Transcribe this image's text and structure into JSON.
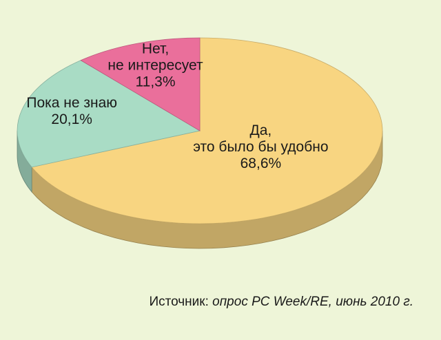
{
  "chart_data": {
    "type": "pie",
    "categories": [
      "Да,\nэто было бы удобно",
      "Пока не знаю",
      "Нет,\nне интересует"
    ],
    "values": [
      68.6,
      20.1,
      11.3
    ],
    "value_labels": [
      "68,6%",
      "20,1%",
      "11,3%"
    ],
    "colors": [
      "#f8d581",
      "#a9dcc5",
      "#ea6f9b"
    ],
    "source": {
      "label": "Источник:",
      "text": "опрос PC Week/RE, июнь 2010 г."
    }
  }
}
